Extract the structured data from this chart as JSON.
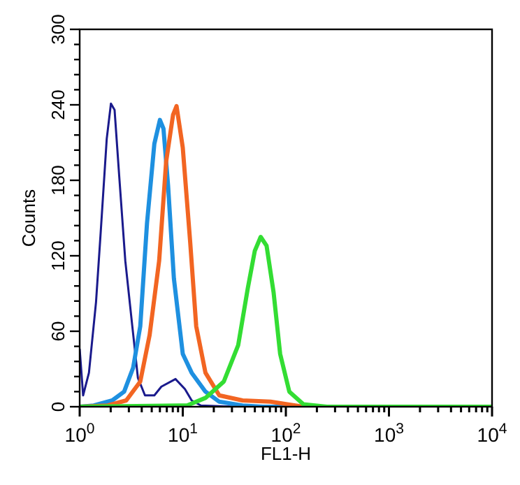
{
  "chart_data": {
    "type": "line",
    "xlabel": "FL1-H",
    "ylabel": "Counts",
    "log": "x",
    "grid": false,
    "line_style": "solid",
    "xlim": [
      1,
      10000
    ],
    "ylim": [
      0,
      300
    ],
    "xticks": [
      {
        "value": 1,
        "label": "10$^{0}$"
      },
      {
        "value": 2,
        "label": null
      },
      {
        "value": 3,
        "label": null
      },
      {
        "value": 4,
        "label": null
      },
      {
        "value": 5,
        "label": null
      },
      {
        "value": 6,
        "label": null
      },
      {
        "value": 7,
        "label": null
      },
      {
        "value": 8,
        "label": null
      },
      {
        "value": 9,
        "label": null
      },
      {
        "value": 10,
        "label": "10$^{1}$"
      },
      {
        "value": 20,
        "label": null
      },
      {
        "value": 30,
        "label": null
      },
      {
        "value": 40,
        "label": null
      },
      {
        "value": 50,
        "label": null
      },
      {
        "value": 60,
        "label": null
      },
      {
        "value": 70,
        "label": null
      },
      {
        "value": 80,
        "label": null
      },
      {
        "value": 90,
        "label": null
      },
      {
        "value": 100,
        "label": "10$^{2}$"
      },
      {
        "value": 200,
        "label": null
      },
      {
        "value": 300,
        "label": null
      },
      {
        "value": 400,
        "label": null
      },
      {
        "value": 500,
        "label": null
      },
      {
        "value": 600,
        "label": null
      },
      {
        "value": 700,
        "label": null
      },
      {
        "value": 800,
        "label": null
      },
      {
        "value": 900,
        "label": null
      },
      {
        "value": 1000,
        "label": "10$^{3}$"
      },
      {
        "value": 2000,
        "label": null
      },
      {
        "value": 3000,
        "label": null
      },
      {
        "value": 4000,
        "label": null
      },
      {
        "value": 5000,
        "label": null
      },
      {
        "value": 6000,
        "label": null
      },
      {
        "value": 7000,
        "label": null
      },
      {
        "value": 8000,
        "label": null
      },
      {
        "value": 9000,
        "label": null
      },
      {
        "value": 10000,
        "label": "10$^{4}$"
      }
    ],
    "yticks": [
      0,
      {
        "value": 12,
        "label": null
      },
      {
        "value": 24,
        "label": null
      },
      {
        "value": 36,
        "label": null
      },
      {
        "value": 48,
        "label": null
      },
      60,
      {
        "value": 72,
        "label": null
      },
      {
        "value": 84,
        "label": null
      },
      {
        "value": 96,
        "label": null
      },
      {
        "value": 108,
        "label": null
      },
      120,
      {
        "value": 132,
        "label": null
      },
      {
        "value": 144,
        "label": null
      },
      {
        "value": 156,
        "label": null
      },
      {
        "value": 168,
        "label": null
      },
      180,
      {
        "value": 192,
        "label": null
      },
      {
        "value": 204,
        "label": null
      },
      {
        "value": 216,
        "label": null
      },
      {
        "value": 228,
        "label": null
      },
      240,
      {
        "value": 252,
        "label": null
      },
      {
        "value": 264,
        "label": null
      },
      {
        "value": 276,
        "label": null
      },
      {
        "value": 288,
        "label": null
      },
      300
    ],
    "series": [
      {
        "color": "#1a1a8c",
        "x": [
          1,
          1.08,
          1.23,
          1.44,
          1.6,
          1.83,
          2.01,
          2.18,
          2.42,
          2.77,
          3.24,
          3.67,
          4.3,
          5.3,
          6.2,
          8.5,
          10.5,
          12.2,
          15,
          31,
          10000
        ],
        "values": [
          46,
          9,
          27,
          83,
          139,
          213,
          241,
          236,
          183,
          116,
          64,
          23,
          9,
          9,
          16,
          22,
          14,
          5,
          1,
          0,
          0
        ]
      },
      {
        "color": "#1e90e0",
        "x": [
          1,
          1.37,
          2.07,
          2.7,
          3.3,
          3.87,
          4.5,
          5.3,
          6,
          6.5,
          7.2,
          8.2,
          10,
          12.2,
          16.6,
          22.6,
          38,
          60,
          10000
        ],
        "values": [
          0,
          1,
          5,
          12,
          31,
          64,
          146,
          209,
          228,
          221,
          176,
          102,
          42,
          27,
          12,
          4,
          1,
          0,
          0
        ]
      },
      {
        "color": "#f26522",
        "x": [
          1,
          1.87,
          2.83,
          3.87,
          4.77,
          5.9,
          6.9,
          8.05,
          8.7,
          10,
          11.8,
          13.5,
          16.6,
          22.6,
          38,
          71,
          103,
          148,
          10000
        ],
        "values": [
          0,
          1,
          5,
          20,
          57,
          116,
          195,
          232,
          239,
          206,
          131,
          64,
          27,
          9,
          5,
          4,
          2,
          0,
          0
        ]
      },
      {
        "color": "#33dd33",
        "x": [
          1,
          11,
          16.6,
          25,
          34.5,
          42.7,
          50,
          57,
          65,
          76,
          88,
          108,
          148,
          250,
          10000
        ],
        "values": [
          0,
          1,
          7,
          20,
          49,
          94,
          124,
          135,
          128,
          91,
          42,
          12,
          2,
          0,
          0
        ]
      }
    ]
  }
}
